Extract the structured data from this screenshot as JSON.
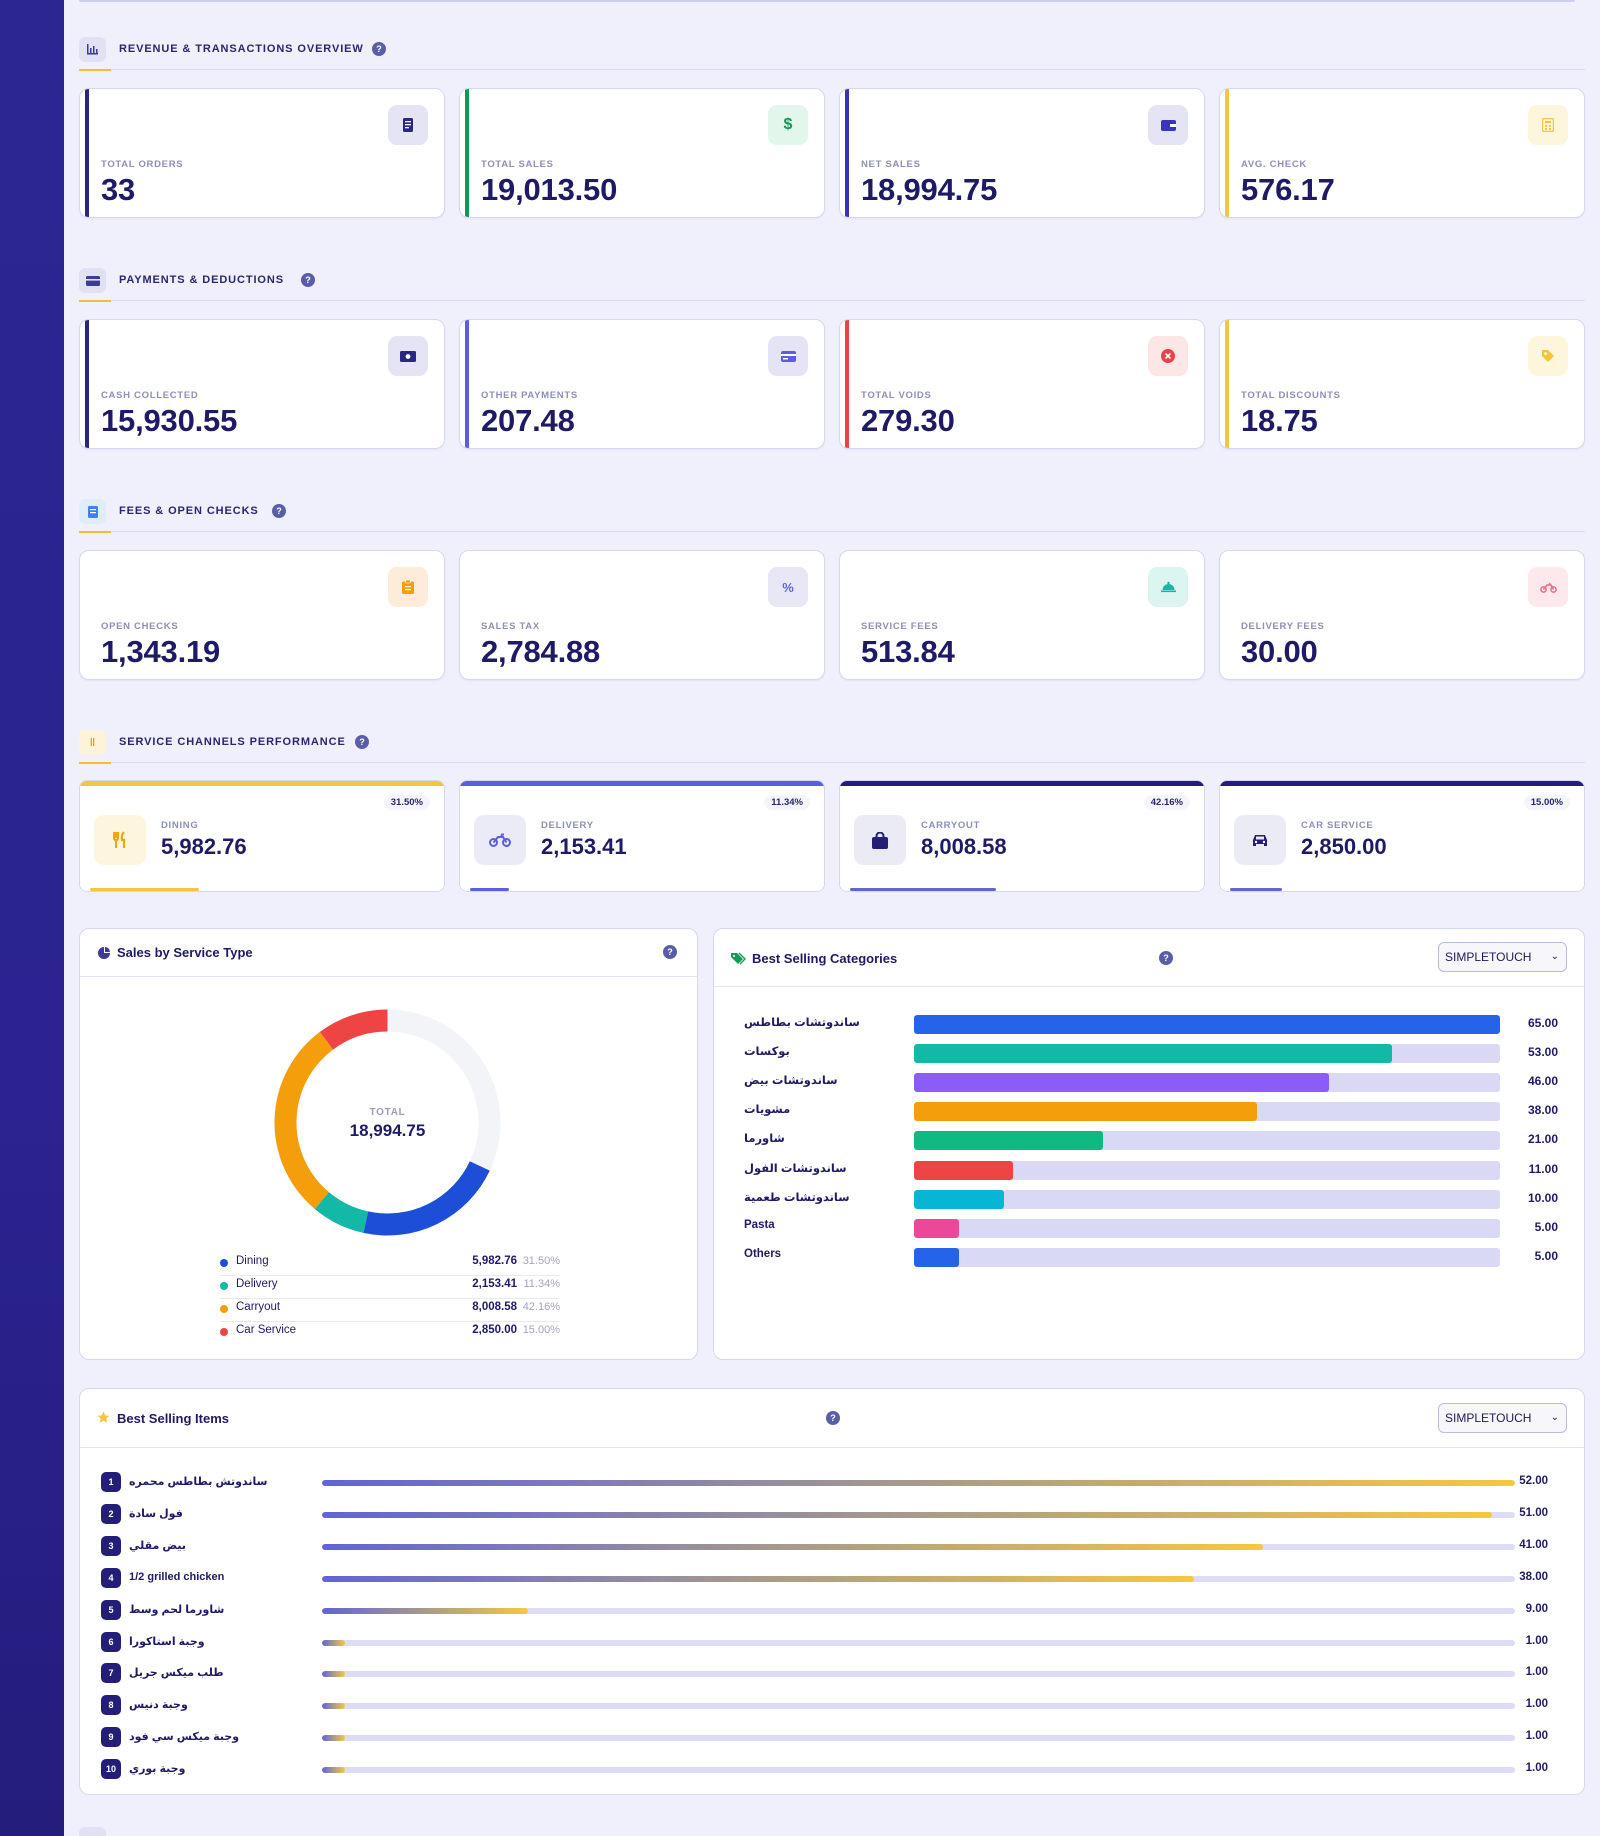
{
  "sections": {
    "revenue": {
      "title": "REVENUE & TRANSACTIONS OVERVIEW",
      "help": "?"
    },
    "payments": {
      "title": "PAYMENTS & DEDUCTIONS",
      "help": "?"
    },
    "fees": {
      "title": "FEES & OPEN CHECKS",
      "help": "?"
    },
    "channels": {
      "title": "SERVICE CHANNELS PERFORMANCE",
      "help": "?"
    }
  },
  "kpis": {
    "revenue": [
      {
        "label": "TOTAL ORDERS",
        "value": "33",
        "icon": "receipt-icon",
        "color": "#2a2686"
      },
      {
        "label": "TOTAL SALES",
        "value": "19,013.50",
        "icon": "dollar-icon",
        "color": "#129856"
      },
      {
        "label": "NET SALES",
        "value": "18,994.75",
        "icon": "wallet-icon",
        "color": "#3a34b6"
      },
      {
        "label": "AVG. CHECK",
        "value": "576.17",
        "icon": "calculator-icon",
        "color": "#f5c542"
      }
    ],
    "payments": [
      {
        "label": "CASH COLLECTED",
        "value": "15,930.55",
        "icon": "cash-icon",
        "color": "#2a2686"
      },
      {
        "label": "OTHER PAYMENTS",
        "value": "207.48",
        "icon": "card-icon",
        "color": "#5c5ee0"
      },
      {
        "label": "TOTAL VOIDS",
        "value": "279.30",
        "icon": "void-icon",
        "color": "#e8414a"
      },
      {
        "label": "TOTAL DISCOUNTS",
        "value": "18.75",
        "icon": "tag-icon",
        "color": "#f5c542"
      }
    ],
    "fees": [
      {
        "label": "OPEN CHECKS",
        "value": "1,343.19",
        "icon": "clipboard-icon",
        "color": "#f59e0b"
      },
      {
        "label": "SALES TAX",
        "value": "2,784.88",
        "icon": "percent-icon",
        "color": "#6366d6"
      },
      {
        "label": "SERVICE FEES",
        "value": "513.84",
        "icon": "cloche-icon",
        "color": "#14b8a6"
      },
      {
        "label": "DELIVERY FEES",
        "value": "30.00",
        "icon": "motorcycle-icon",
        "color": "#f06b85"
      }
    ]
  },
  "channels": [
    {
      "name": "DINING",
      "value": "5,982.76",
      "percent": "31.50%",
      "share": 31.5,
      "icon": "utensils-icon",
      "color": "#f5c542"
    },
    {
      "name": "DELIVERY",
      "value": "2,153.41",
      "percent": "11.34%",
      "share": 11.34,
      "icon": "motorcycle-icon",
      "color": "#5c5ee0"
    },
    {
      "name": "CARRYOUT",
      "value": "8,008.58",
      "percent": "42.16%",
      "share": 42.16,
      "icon": "shopping-bag-icon",
      "color": "#241e78"
    },
    {
      "name": "CAR SERVICE",
      "value": "2,850.00",
      "percent": "15.00%",
      "share": 15.0,
      "icon": "car-icon",
      "color": "#241e78"
    }
  ],
  "service_panel": {
    "title": "Sales by Service Type",
    "help": "?",
    "center_label": "TOTAL",
    "center_value": "18,994.75",
    "legend": [
      {
        "name": "Dining",
        "value": "5,982.76",
        "percent": "31.50%",
        "color": "#1d4ed8"
      },
      {
        "name": "Delivery",
        "value": "2,153.41",
        "percent": "11.34%",
        "color": "#14b8a6"
      },
      {
        "name": "Carryout",
        "value": "8,008.58",
        "percent": "42.16%",
        "color": "#f59e0b"
      },
      {
        "name": "Car Service",
        "value": "2,850.00",
        "percent": "15.00%",
        "color": "#ef4444"
      }
    ]
  },
  "categories_panel": {
    "title": "Best Selling Categories",
    "help": "?",
    "select_value": "SIMPLETOUCH"
  },
  "items_panel": {
    "title": "Best Selling Items",
    "help": "?",
    "select_value": "SIMPLETOUCH",
    "items": [
      {
        "rank": "1",
        "name": "ساندوتش بطاطس محمره",
        "value": "52.00",
        "qty": 52
      },
      {
        "rank": "2",
        "name": "فول سادة",
        "value": "51.00",
        "qty": 51
      },
      {
        "rank": "3",
        "name": "بيض مقلي",
        "value": "41.00",
        "qty": 41
      },
      {
        "rank": "4",
        "name": "1/2 grilled chicken",
        "value": "38.00",
        "qty": 38
      },
      {
        "rank": "5",
        "name": "شاورما لحم وسط",
        "value": "9.00",
        "qty": 9
      },
      {
        "rank": "6",
        "name": "وجبة استاكورا",
        "value": "1.00",
        "qty": 1
      },
      {
        "rank": "7",
        "name": "طلب ميكس جريل",
        "value": "1.00",
        "qty": 1
      },
      {
        "rank": "8",
        "name": "وجبة دنيس",
        "value": "1.00",
        "qty": 1
      },
      {
        "rank": "9",
        "name": "وجبة ميكس سي فود",
        "value": "1.00",
        "qty": 1
      },
      {
        "rank": "10",
        "name": "وجبة بوري",
        "value": "1.00",
        "qty": 1
      }
    ]
  },
  "chart_data": [
    {
      "type": "pie",
      "title": "Sales by Service Type",
      "categories": [
        "Dining",
        "Delivery",
        "Carryout",
        "Car Service"
      ],
      "values": [
        5982.76,
        2153.41,
        8008.58,
        2850.0
      ],
      "colors": [
        "#1d4ed8",
        "#14b8a6",
        "#f59e0b",
        "#ef4444"
      ]
    },
    {
      "type": "bar",
      "title": "Best Selling Categories",
      "orientation": "horizontal",
      "categories": [
        "ساندوتشات بطاطس",
        "بوكسات",
        "ساندوتشات بيض",
        "مشويات",
        "شاورما",
        "ساندوتشات الفول",
        "ساندوتشات طعمية",
        "Pasta",
        "Others"
      ],
      "values": [
        65.0,
        53.0,
        46.0,
        38.0,
        21.0,
        11.0,
        10.0,
        5.0,
        5.0
      ],
      "value_labels": [
        "65.00",
        "53.00",
        "46.00",
        "38.00",
        "21.00",
        "11.00",
        "10.00",
        "5.00",
        "5.00"
      ],
      "colors": [
        "#2563eb",
        "#14b8a6",
        "#8b5cf6",
        "#f59e0b",
        "#10b981",
        "#ef4444",
        "#06b6d4",
        "#ec4899",
        "#2563eb"
      ],
      "xlim": [
        0,
        65
      ]
    },
    {
      "type": "bar",
      "title": "Best Selling Items",
      "orientation": "horizontal",
      "categories": [
        "ساندوتش بطاطس محمره",
        "فول سادة",
        "بيض مقلي",
        "1/2 grilled chicken",
        "شاورما لحم وسط",
        "وجبة استاكورا",
        "طلب ميكس جريل",
        "وجبة دنيس",
        "وجبة ميكس سي فود",
        "وجبة بوري"
      ],
      "values": [
        52,
        51,
        41,
        38,
        9,
        1,
        1,
        1,
        1,
        1
      ],
      "xlim": [
        0,
        52
      ]
    }
  ]
}
